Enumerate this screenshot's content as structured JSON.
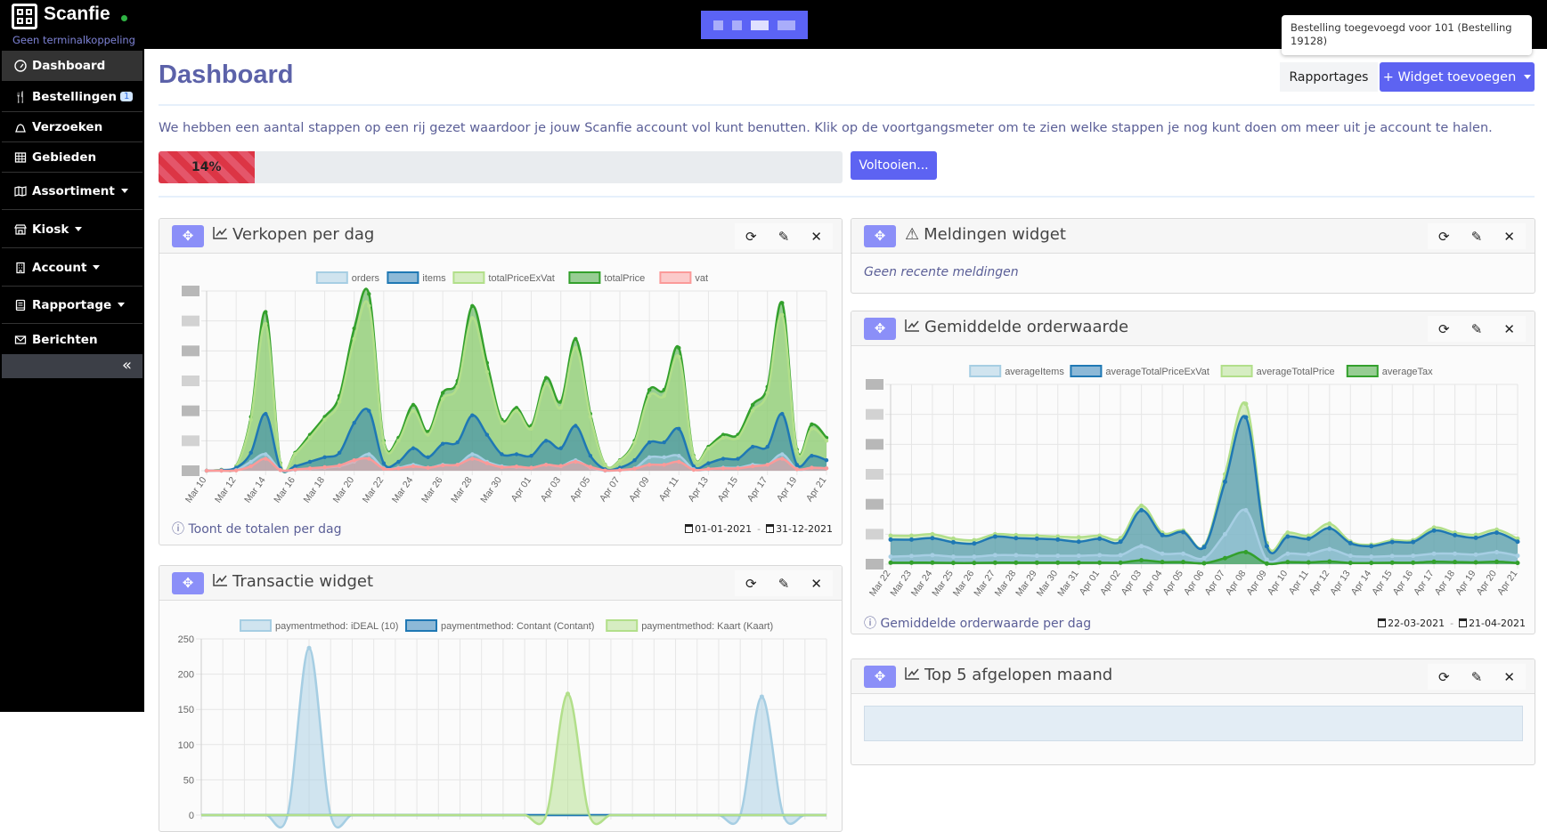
{
  "topbar": {
    "brand": "Scanfie",
    "terminal_status": "Geen terminalkoppeling",
    "toast": "Bestelling toegevoegd voor 101 (Bestelling 19128)"
  },
  "sidebar": {
    "items": [
      {
        "label": "Dashboard",
        "icon": "gauge-icon"
      },
      {
        "label": "Bestellingen",
        "icon": "utensils-icon",
        "badge": "1"
      },
      {
        "label": "Verzoeken",
        "icon": "bell-icon"
      },
      {
        "label": "Gebieden",
        "icon": "grid-icon"
      },
      {
        "label": "Assortiment",
        "icon": "map-icon"
      },
      {
        "label": "Kiosk",
        "icon": "shop-icon"
      },
      {
        "label": "Account",
        "icon": "building-icon"
      },
      {
        "label": "Rapportage",
        "icon": "book-icon"
      },
      {
        "label": "Berichten",
        "icon": "envelope-icon"
      }
    ],
    "collapse": "«"
  },
  "header": {
    "title": "Dashboard",
    "rapportages": "Rapportages",
    "add_widget": "+ Widget toevoegen"
  },
  "onboarding": {
    "text": "We hebben een aantal stappen op een rij gezet waardoor je jouw Scanfie account vol kunt benutten. Klik op de voortgangsmeter om te zien welke stappen je nog kunt doen om meer uit je account te halen.",
    "progress_percent": 14,
    "progress_label": "14%",
    "complete_button": "Voltooien..."
  },
  "widgets": {
    "sales": {
      "title": "Verkopen per dag",
      "footer": "Toont de totalen per dag",
      "date_from": "01-01-2021",
      "date_to": "31-12-2021"
    },
    "notifications": {
      "title": "Meldingen widget",
      "empty": "Geen recente meldingen"
    },
    "average": {
      "title": "Gemiddelde orderwaarde",
      "footer": "Gemiddelde orderwaarde per dag",
      "date_from": "22-03-2021",
      "date_to": "21-04-2021"
    },
    "transactions": {
      "title": "Transactie widget"
    },
    "top5": {
      "title": "Top 5 afgelopen maand"
    }
  },
  "chart_data": [
    {
      "id": "sales",
      "type": "line",
      "title": "Verkopen per dag",
      "ylim": [
        0,
        6
      ],
      "y_tick_labels_redacted": true,
      "x_tick_labels": [
        "Mar 10",
        "Mar 12",
        "Mar 14",
        "Mar 16",
        "Mar 18",
        "Mar 20",
        "Mar 22",
        "Mar 24",
        "Mar 26",
        "Mar 28",
        "Mar 30",
        "Apr 01",
        "Apr 03",
        "Apr 05",
        "Apr 07",
        "Apr 09",
        "Apr 11",
        "Apr 13",
        "Apr 15",
        "Apr 17",
        "Apr 19",
        "Apr 21"
      ],
      "legend": "top",
      "series": [
        {
          "name": "orders",
          "color": "#a6cee3",
          "values": [
            0,
            0,
            0.02,
            0.3,
            0.55,
            0.02,
            0.03,
            0.06,
            0.1,
            0.15,
            0.3,
            0.55,
            0.08,
            0.1,
            0.2,
            0.1,
            0.2,
            0.2,
            0.55,
            0.3,
            0.15,
            0.12,
            0.1,
            0.2,
            0.15,
            0.35,
            0.1,
            0,
            0.02,
            0.08,
            0.45,
            0.45,
            0.5,
            0.05,
            0.05,
            0.1,
            0.1,
            0.2,
            0.2,
            0.55,
            0.05,
            0.1,
            0.08
          ]
        },
        {
          "name": "items",
          "color": "#1f78b4",
          "values": [
            0,
            0.02,
            0.1,
            0.6,
            1.9,
            0.08,
            0.15,
            0.3,
            0.45,
            0.6,
            1.6,
            2.0,
            0.25,
            0.3,
            0.75,
            0.45,
            0.9,
            0.95,
            1.85,
            1.2,
            0.55,
            0.55,
            0.5,
            1.0,
            0.75,
            1.5,
            0.5,
            0.05,
            0.1,
            0.35,
            0.95,
            0.95,
            1.4,
            0.15,
            0.25,
            0.4,
            0.4,
            0.8,
            0.8,
            1.9,
            0.2,
            0.5,
            0.35
          ]
        },
        {
          "name": "totalPriceExVat",
          "color": "#b2df8a",
          "values": [
            0,
            0.03,
            0.14,
            1.7,
            4.9,
            0.23,
            0.56,
            1.1,
            1.7,
            2.3,
            4.4,
            5.5,
            0.93,
            1.0,
            2.0,
            1.2,
            2.4,
            2.8,
            5.1,
            3.3,
            1.6,
            2.0,
            1.4,
            2.9,
            2.1,
            4.1,
            1.8,
            0.19,
            0.33,
            0.93,
            2.5,
            2.5,
            3.8,
            0.47,
            0.74,
            1.1,
            1.1,
            2.0,
            2.6,
            5.2,
            0.65,
            1.4,
            1.0
          ]
        },
        {
          "name": "totalPrice",
          "color": "#33a02c",
          "values": [
            0,
            0.03,
            0.15,
            1.8,
            5.3,
            0.25,
            0.6,
            1.2,
            1.8,
            2.5,
            4.75,
            5.9,
            1.0,
            1.1,
            2.2,
            1.3,
            2.6,
            3.0,
            5.5,
            3.6,
            1.7,
            2.1,
            1.5,
            3.1,
            2.3,
            4.4,
            1.9,
            0.2,
            0.35,
            1.0,
            2.7,
            2.7,
            4.1,
            0.5,
            0.8,
            1.2,
            1.2,
            2.2,
            2.8,
            5.6,
            0.7,
            1.55,
            1.1
          ]
        },
        {
          "name": "vat",
          "color": "#fb9a99",
          "values": [
            0,
            0,
            0.01,
            0.15,
            0.4,
            0.02,
            0.04,
            0.08,
            0.12,
            0.18,
            0.35,
            0.4,
            0.07,
            0.08,
            0.15,
            0.1,
            0.18,
            0.2,
            0.4,
            0.25,
            0.12,
            0.14,
            0.1,
            0.2,
            0.16,
            0.3,
            0.13,
            0.01,
            0.02,
            0.07,
            0.2,
            0.2,
            0.3,
            0.03,
            0.06,
            0.08,
            0.08,
            0.15,
            0.2,
            0.4,
            0.05,
            0.1,
            0.08
          ]
        }
      ]
    },
    {
      "id": "average",
      "type": "line",
      "title": "Gemiddelde orderwaarde",
      "ylim": [
        0,
        6
      ],
      "y_tick_labels_redacted": true,
      "x_tick_labels": [
        "Mar 22",
        "Mar 23",
        "Mar 24",
        "Mar 25",
        "Mar 26",
        "Mar 27",
        "Mar 28",
        "Mar 29",
        "Mar 30",
        "Mar 31",
        "Apr 01",
        "Apr 02",
        "Apr 03",
        "Apr 04",
        "Apr 05",
        "Apr 06",
        "Apr 07",
        "Apr 08",
        "Apr 09",
        "Apr 10",
        "Apr 11",
        "Apr 12",
        "Apr 13",
        "Apr 14",
        "Apr 15",
        "Apr 16",
        "Apr 17",
        "Apr 18",
        "Apr 19",
        "Apr 20",
        "Apr 21"
      ],
      "legend": "top",
      "series": [
        {
          "name": "averageItems",
          "color": "#a6cee3",
          "values": [
            0.25,
            0.27,
            0.3,
            0.25,
            0.25,
            0.3,
            0.3,
            0.28,
            0.28,
            0.28,
            0.3,
            0.3,
            0.6,
            0.35,
            0.35,
            0.2,
            1.0,
            1.8,
            0.15,
            0.35,
            0.33,
            0.5,
            0.28,
            0.25,
            0.27,
            0.28,
            0.35,
            0.35,
            0.32,
            0.4,
            0.28
          ]
        },
        {
          "name": "averageTotalPriceExVat",
          "color": "#1f78b4",
          "values": [
            0.82,
            0.82,
            0.87,
            0.73,
            0.69,
            0.92,
            0.87,
            0.85,
            0.82,
            0.75,
            0.85,
            0.75,
            1.8,
            0.97,
            1.07,
            0.57,
            2.75,
            4.9,
            0.6,
            0.92,
            0.85,
            1.2,
            0.7,
            0.6,
            0.74,
            0.74,
            1.12,
            0.97,
            0.88,
            1.05,
            0.75
          ]
        },
        {
          "name": "averageTotalPrice",
          "color": "#b2df8a",
          "values": [
            0.95,
            0.95,
            1.0,
            0.85,
            0.8,
            1.0,
            0.97,
            0.95,
            0.92,
            0.9,
            0.95,
            0.87,
            1.95,
            1.05,
            1.12,
            0.6,
            3.0,
            5.35,
            0.7,
            1.05,
            0.95,
            1.35,
            0.75,
            0.65,
            0.8,
            0.8,
            1.22,
            1.05,
            0.98,
            1.15,
            0.85
          ]
        },
        {
          "name": "averageTax",
          "color": "#33a02c",
          "values": [
            0.05,
            0.05,
            0.05,
            0.04,
            0.04,
            0.05,
            0.05,
            0.05,
            0.05,
            0.05,
            0.05,
            0.05,
            0.13,
            0.07,
            0.07,
            0.03,
            0.2,
            0.4,
            0.02,
            0.07,
            0.06,
            0.09,
            0.04,
            0.04,
            0.05,
            0.05,
            0.08,
            0.07,
            0.06,
            0.08,
            0.04
          ]
        }
      ]
    },
    {
      "id": "transactions",
      "type": "line",
      "title": "Transactie widget",
      "ylim": [
        0,
        250
      ],
      "y_ticks": [
        250,
        200,
        150,
        100,
        50,
        0
      ],
      "legend": "top",
      "series": [
        {
          "name": "paymentmethod: iDEAL (10)",
          "color": "#a6cee3",
          "values": [
            0,
            0,
            0,
            0,
            0,
            237,
            0,
            0,
            0,
            0,
            0,
            0,
            0,
            0,
            0,
            0,
            0,
            0,
            0,
            0,
            0,
            0,
            0,
            0,
            0,
            0,
            168,
            0,
            0,
            0
          ]
        },
        {
          "name": "paymentmethod: Contant (Contant)",
          "color": "#1f78b4",
          "values": [
            0,
            0,
            0,
            0,
            0,
            0,
            0,
            0,
            0,
            0,
            0,
            0,
            0,
            0,
            0,
            0,
            0,
            0,
            0,
            0,
            0,
            0,
            0,
            0,
            0,
            0,
            0,
            0,
            0,
            0
          ]
        },
        {
          "name": "paymentmethod: Kaart (Kaart)",
          "color": "#b2df8a",
          "values": [
            0,
            0,
            0,
            0,
            0,
            0,
            0,
            0,
            0,
            0,
            0,
            0,
            0,
            0,
            0,
            0,
            0,
            172,
            0,
            0,
            0,
            0,
            0,
            0,
            0,
            0,
            0,
            0,
            0,
            0
          ]
        }
      ]
    }
  ]
}
